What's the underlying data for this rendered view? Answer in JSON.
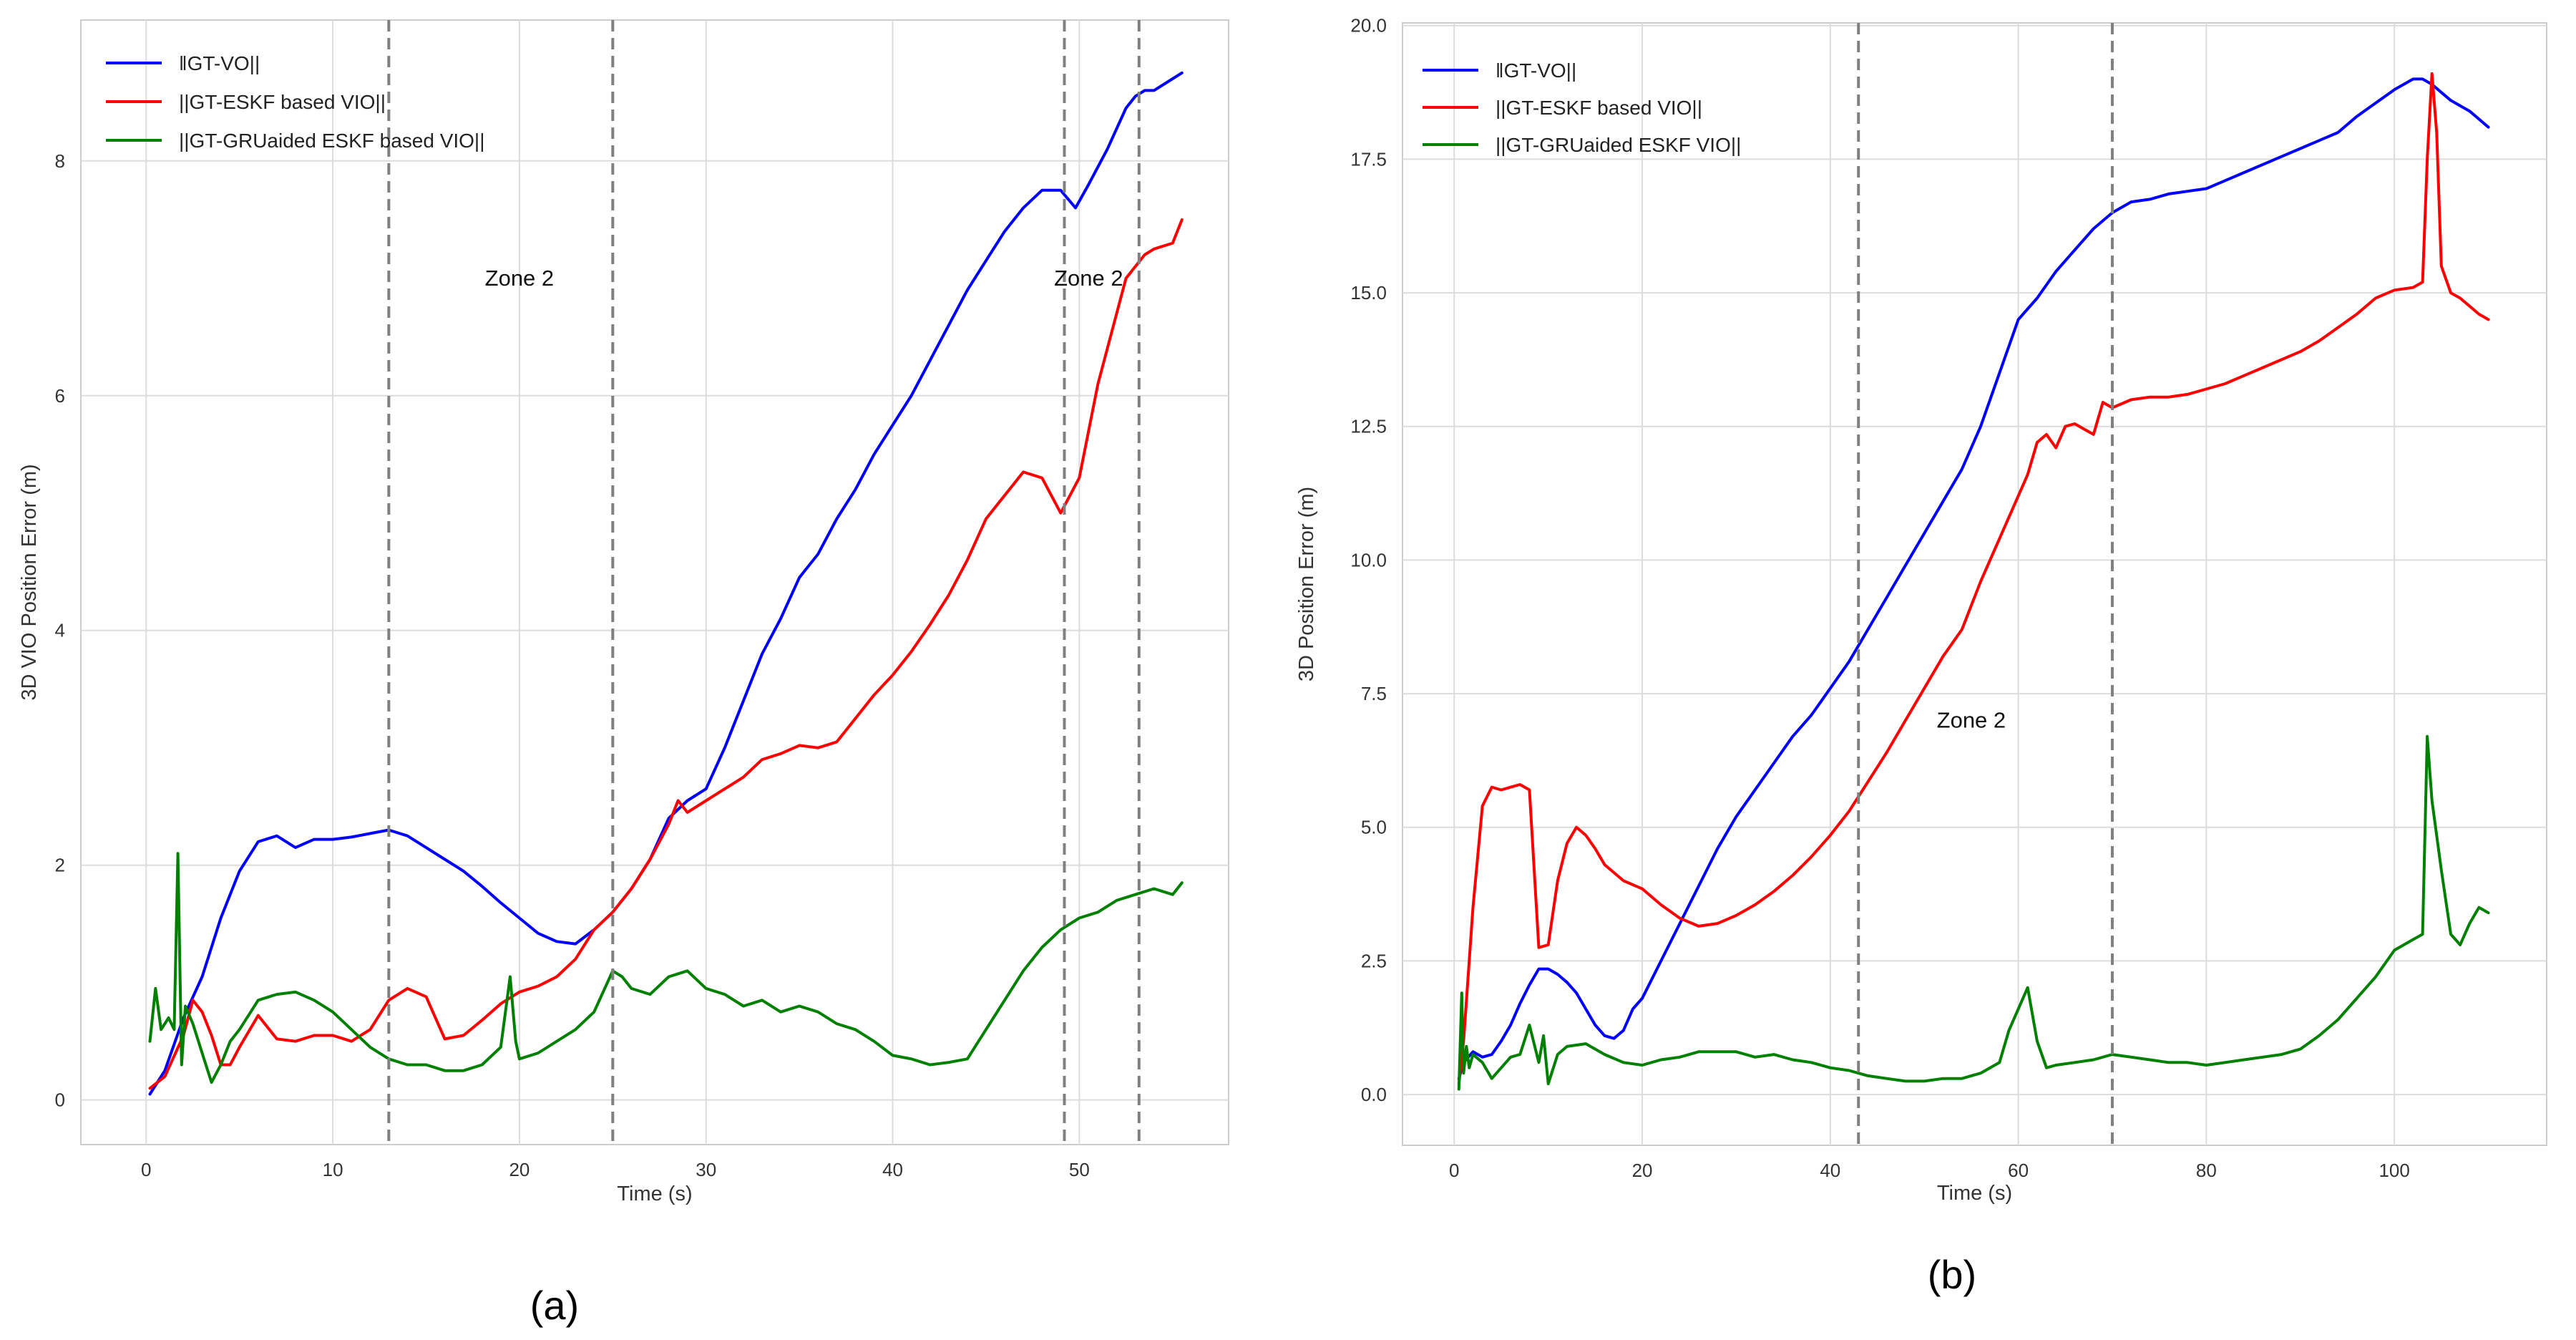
{
  "panel_labels": [
    "(a)",
    "(b)"
  ],
  "chart_data": [
    {
      "type": "line",
      "xlabel": "Time (s)",
      "ylabel": "3D VIO Position Error (m)",
      "xlim": [
        -3.5,
        58
      ],
      "ylim": [
        -0.38,
        9.2
      ],
      "xticks": [
        0,
        10,
        20,
        30,
        40,
        50
      ],
      "yticks": [
        0,
        2,
        4,
        6,
        8
      ],
      "grid": true,
      "legend_position": "top-left",
      "colors": {
        "vo": "#0000ff",
        "eskf": "#ff0000",
        "gru": "#008000",
        "zone_line": "#808080"
      },
      "vlines": [
        13,
        25,
        49.2,
        53.2
      ],
      "annotations": [
        {
          "text": "Zone 2",
          "x": 20,
          "y": 7
        },
        {
          "text": "Zone 2",
          "x": 50.5,
          "y": 7
        }
      ],
      "series": [
        {
          "name": "‖GT-VO||",
          "color": "#0000ff",
          "x": [
            0.2,
            1,
            2,
            3,
            4,
            5,
            6,
            7,
            8,
            9,
            10,
            11,
            12,
            13,
            14,
            15,
            16,
            17,
            18,
            19,
            20,
            21,
            22,
            23,
            24,
            25,
            26,
            27,
            28,
            29,
            30,
            31,
            32,
            33,
            34,
            35,
            36,
            37,
            38,
            39,
            40,
            41,
            42,
            43,
            44,
            45,
            46,
            47,
            48,
            49,
            49.8,
            50.5,
            51.5,
            52.5,
            53,
            53.5,
            54,
            55,
            55.5
          ],
          "y": [
            0.05,
            0.25,
            0.7,
            1.05,
            1.55,
            1.95,
            2.2,
            2.25,
            2.15,
            2.22,
            2.22,
            2.24,
            2.27,
            2.3,
            2.25,
            2.15,
            2.05,
            1.95,
            1.82,
            1.68,
            1.55,
            1.42,
            1.35,
            1.33,
            1.45,
            1.6,
            1.8,
            2.05,
            2.4,
            2.55,
            2.65,
            3.0,
            3.4,
            3.8,
            4.1,
            4.45,
            4.65,
            4.95,
            5.2,
            5.5,
            5.75,
            6.0,
            6.3,
            6.6,
            6.9,
            7.15,
            7.4,
            7.6,
            7.75,
            7.75,
            7.6,
            7.8,
            8.1,
            8.45,
            8.55,
            8.6,
            8.6,
            8.7,
            8.75
          ]
        },
        {
          "name": "||GT-ESKF based VIO||",
          "color": "#ff0000",
          "x": [
            0.2,
            1,
            2,
            2.5,
            3,
            3.5,
            4,
            4.5,
            5,
            6,
            7,
            8,
            9,
            10,
            11,
            12,
            13,
            14,
            15,
            16,
            17,
            18,
            19,
            20,
            21,
            22,
            23,
            24,
            25,
            26,
            27,
            28,
            28.5,
            29,
            30,
            31,
            32,
            33,
            34,
            35,
            36,
            37,
            38,
            39,
            40,
            41,
            42,
            43,
            44,
            45,
            46,
            47,
            48,
            49,
            50,
            51,
            52,
            52.5,
            53,
            53.5,
            54,
            55,
            55.5
          ],
          "y": [
            0.1,
            0.2,
            0.55,
            0.85,
            0.75,
            0.55,
            0.3,
            0.3,
            0.45,
            0.72,
            0.52,
            0.5,
            0.55,
            0.55,
            0.5,
            0.6,
            0.85,
            0.95,
            0.88,
            0.52,
            0.55,
            0.68,
            0.82,
            0.92,
            0.97,
            1.05,
            1.2,
            1.45,
            1.6,
            1.8,
            2.05,
            2.35,
            2.55,
            2.45,
            2.55,
            2.65,
            2.75,
            2.9,
            2.95,
            3.02,
            3.0,
            3.05,
            3.25,
            3.45,
            3.62,
            3.82,
            4.05,
            4.3,
            4.6,
            4.95,
            5.15,
            5.35,
            5.3,
            5.0,
            5.3,
            6.1,
            6.7,
            7.0,
            7.1,
            7.2,
            7.25,
            7.3,
            7.5
          ]
        },
        {
          "name": "||GT-GRUaided ESKF based VIO||",
          "color": "#008000",
          "x": [
            0.2,
            0.5,
            0.8,
            1.2,
            1.5,
            1.7,
            1.9,
            2.1,
            2.5,
            3,
            3.5,
            4,
            4.5,
            5,
            6,
            7,
            8,
            9,
            10,
            11,
            12,
            13,
            14,
            15,
            16,
            17,
            18,
            19,
            19.5,
            19.8,
            20,
            21,
            22,
            23,
            24,
            25,
            25.5,
            26,
            27,
            28,
            29,
            30,
            31,
            32,
            33,
            34,
            35,
            36,
            37,
            38,
            39,
            40,
            41,
            42,
            43,
            44,
            45,
            46,
            47,
            48,
            49,
            50,
            51,
            52,
            53,
            54,
            55,
            55.5
          ],
          "y": [
            0.5,
            0.95,
            0.6,
            0.7,
            0.6,
            2.1,
            0.3,
            0.8,
            0.65,
            0.4,
            0.15,
            0.3,
            0.5,
            0.6,
            0.85,
            0.9,
            0.92,
            0.85,
            0.75,
            0.6,
            0.45,
            0.35,
            0.3,
            0.3,
            0.25,
            0.25,
            0.3,
            0.45,
            1.05,
            0.5,
            0.35,
            0.4,
            0.5,
            0.6,
            0.75,
            1.1,
            1.05,
            0.95,
            0.9,
            1.05,
            1.1,
            0.95,
            0.9,
            0.8,
            0.85,
            0.75,
            0.8,
            0.75,
            0.65,
            0.6,
            0.5,
            0.38,
            0.35,
            0.3,
            0.32,
            0.35,
            0.6,
            0.85,
            1.1,
            1.3,
            1.45,
            1.55,
            1.6,
            1.7,
            1.75,
            1.8,
            1.75,
            1.85
          ]
        }
      ]
    },
    {
      "type": "line",
      "xlabel": "Time (s)",
      "ylabel": "3D Position Error (m)",
      "xlim": [
        -5.5,
        116.2
      ],
      "ylim": [
        -0.95,
        20.05
      ],
      "xticks": [
        0,
        20,
        40,
        60,
        80,
        100
      ],
      "yticks": [
        0.0,
        2.5,
        5.0,
        7.5,
        10.0,
        12.5,
        15.0,
        17.5,
        20.0
      ],
      "ytick_labels": [
        "0.0",
        "2.5",
        "5.0",
        "7.5",
        "10.0",
        "12.5",
        "15.0",
        "17.5",
        "20.0"
      ],
      "grid": true,
      "legend_position": "top-left",
      "colors": {
        "vo": "#0000ff",
        "eskf": "#ff0000",
        "gru": "#008000",
        "zone_line": "#808080"
      },
      "vlines": [
        43,
        70
      ],
      "annotations": [
        {
          "text": "Zone 2",
          "x": 55,
          "y": 7
        }
      ],
      "series": [
        {
          "name": "‖GT-VO||",
          "color": "#0000ff",
          "x": [
            0.5,
            1,
            2,
            3,
            4,
            5,
            6,
            7,
            8,
            9,
            10,
            11,
            12,
            13,
            14,
            15,
            16,
            17,
            18,
            19,
            20,
            22,
            24,
            26,
            28,
            30,
            32,
            34,
            36,
            38,
            40,
            42,
            44,
            46,
            48,
            50,
            52,
            54,
            56,
            58,
            60,
            62,
            64,
            66,
            68,
            70,
            72,
            74,
            76,
            78,
            80,
            82,
            84,
            86,
            88,
            90,
            92,
            94,
            96,
            98,
            100,
            102,
            103,
            104,
            106,
            108,
            110
          ],
          "y": [
            0.3,
            0.6,
            0.8,
            0.7,
            0.75,
            1.0,
            1.3,
            1.7,
            2.05,
            2.35,
            2.35,
            2.25,
            2.1,
            1.9,
            1.6,
            1.3,
            1.1,
            1.05,
            1.2,
            1.6,
            1.8,
            2.5,
            3.2,
            3.9,
            4.6,
            5.2,
            5.7,
            6.2,
            6.7,
            7.1,
            7.6,
            8.1,
            8.7,
            9.3,
            9.9,
            10.5,
            11.1,
            11.7,
            12.5,
            13.5,
            14.5,
            14.9,
            15.4,
            15.8,
            16.2,
            16.5,
            16.7,
            16.75,
            16.85,
            16.9,
            16.95,
            17.1,
            17.25,
            17.4,
            17.55,
            17.7,
            17.85,
            18.0,
            18.3,
            18.55,
            18.8,
            19.0,
            19.0,
            18.9,
            18.6,
            18.4,
            18.1
          ]
        },
        {
          "name": "||GT-ESKF based VIO||",
          "color": "#ff0000",
          "x": [
            0.5,
            1,
            2,
            3,
            4,
            5,
            6,
            7,
            8,
            9,
            10,
            11,
            12,
            13,
            14,
            15,
            16,
            18,
            20,
            22,
            24,
            26,
            28,
            30,
            32,
            34,
            36,
            38,
            40,
            42,
            44,
            46,
            48,
            50,
            52,
            54,
            56,
            58,
            60,
            61,
            62,
            63,
            64,
            65,
            66,
            67,
            68,
            69,
            70,
            72,
            74,
            76,
            78,
            80,
            82,
            84,
            86,
            88,
            90,
            92,
            94,
            96,
            98,
            100,
            102,
            103,
            103.5,
            104,
            104.5,
            105,
            106,
            107,
            108,
            109,
            110
          ],
          "y": [
            0.2,
            1.0,
            3.5,
            5.4,
            5.75,
            5.7,
            5.75,
            5.8,
            5.7,
            2.75,
            2.8,
            4.0,
            4.7,
            5.0,
            4.85,
            4.6,
            4.3,
            4.0,
            3.85,
            3.55,
            3.3,
            3.15,
            3.2,
            3.35,
            3.55,
            3.8,
            4.1,
            4.45,
            4.85,
            5.3,
            5.85,
            6.4,
            7.0,
            7.6,
            8.2,
            8.7,
            9.6,
            10.4,
            11.2,
            11.6,
            12.2,
            12.35,
            12.1,
            12.5,
            12.55,
            12.45,
            12.35,
            12.95,
            12.85,
            13.0,
            13.05,
            13.05,
            13.1,
            13.2,
            13.3,
            13.45,
            13.6,
            13.75,
            13.9,
            14.1,
            14.35,
            14.6,
            14.9,
            15.05,
            15.1,
            15.2,
            17.5,
            19.1,
            18.0,
            15.5,
            15.0,
            14.9,
            14.75,
            14.6,
            14.5
          ]
        },
        {
          "name": "||GT-GRUaided ESKF VIO||",
          "color": "#008000",
          "x": [
            0.5,
            0.8,
            1,
            1.3,
            1.6,
            2,
            3,
            4,
            5,
            6,
            7,
            8,
            9,
            9.5,
            10,
            11,
            12,
            14,
            16,
            18,
            20,
            22,
            24,
            26,
            28,
            30,
            32,
            34,
            36,
            38,
            40,
            42,
            44,
            46,
            48,
            50,
            52,
            54,
            56,
            58,
            59,
            60,
            61,
            62,
            63,
            64,
            66,
            68,
            70,
            72,
            74,
            76,
            78,
            80,
            82,
            84,
            86,
            88,
            90,
            92,
            94,
            96,
            98,
            100,
            102,
            103,
            103.5,
            104,
            105,
            106,
            107,
            108,
            109,
            110
          ],
          "y": [
            0.1,
            1.9,
            0.4,
            0.9,
            0.5,
            0.75,
            0.6,
            0.3,
            0.5,
            0.7,
            0.75,
            1.3,
            0.6,
            1.1,
            0.2,
            0.75,
            0.9,
            0.95,
            0.75,
            0.6,
            0.55,
            0.65,
            0.7,
            0.8,
            0.8,
            0.8,
            0.7,
            0.75,
            0.65,
            0.6,
            0.5,
            0.45,
            0.35,
            0.3,
            0.25,
            0.25,
            0.3,
            0.3,
            0.4,
            0.6,
            1.2,
            1.6,
            2.0,
            1.0,
            0.5,
            0.55,
            0.6,
            0.65,
            0.75,
            0.7,
            0.65,
            0.6,
            0.6,
            0.55,
            0.6,
            0.65,
            0.7,
            0.75,
            0.85,
            1.1,
            1.4,
            1.8,
            2.2,
            2.7,
            2.9,
            3.0,
            6.7,
            5.5,
            4.2,
            3.0,
            2.8,
            3.2,
            3.5,
            3.4
          ]
        }
      ]
    }
  ]
}
